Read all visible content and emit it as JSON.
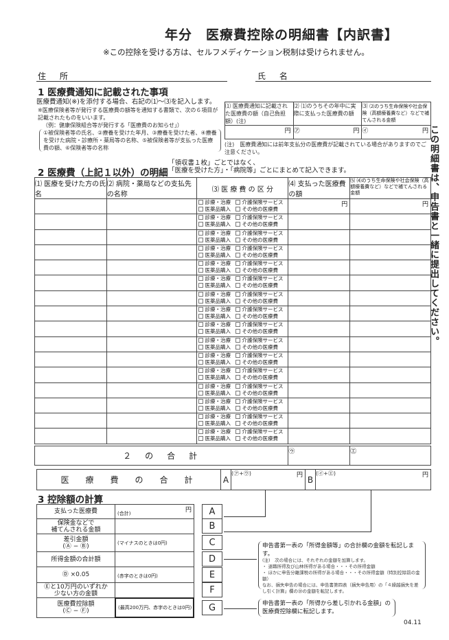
{
  "header": {
    "title": "年分　医療費控除の明細書【内訳書】",
    "notice": "※この控除を受ける方は、セルフメディケーション税制は受けられません。",
    "address_label": "住 所",
    "name_label": "氏 名"
  },
  "side_note": "この明細書は、申告書と一緒に提出してください。",
  "section1": {
    "heading": "1 医療費通知に記載された事項",
    "instruction": "医療費通知(※)を添付する場合、右記の⑴〜⑶を記入します。",
    "note1": "※医療保険者等が発行する医療費の額等を通知する書類で、次の６項目が記載されたものをいいます。",
    "note2": "（例：健康保険組合等が発行する「医療費のお知らせ」）",
    "note3": "①被保険者等の氏名、②療養を受けた年月、③療養を受けた者、④療養を受けた病院・診療所・薬局等の名称、⑤被保険者等が支払った医療費の額、⑥保険者等の名称",
    "cols": [
      {
        "num": "⑴",
        "label": "医療費通知に記載された医療費の額（自己負担額）(注)",
        "mark": "",
        "unit": "円"
      },
      {
        "num": "⑵",
        "label": "⑴のうちその年中に実際に支払った医療費の額",
        "mark": "㋐",
        "unit": "円"
      },
      {
        "num": "⑶",
        "label": "⑵のうち生命保険や社会保険（高額療養費など）などで補てんされる金額",
        "mark": "㋑",
        "unit": "円"
      }
    ],
    "footnote": "(注)　医療費通知には前年支払分の医療費が記載されている場合がありますのでご注意ください。"
  },
  "section2": {
    "heading": "2 医療費（上記１以外）の明細",
    "note": "「領収書１枚」ごとではなく、\n「医療を受けた方」・「病院等」ごとにまとめて記入できます。",
    "headers": [
      "⑴ 医療を受けた方の氏名",
      "⑵ 病院・薬局などの支払先の名称",
      "⑶ 医 療 費 の 区 分",
      "⑷ 支払った医療費の額",
      "⑸ ⑷のうち生命保険や社会保険（高額療養費など）などで補てんされる金額"
    ],
    "categories": [
      "診療・治療",
      "介護保険サービス",
      "医薬品購入",
      "その他の医療費"
    ],
    "unit": "円",
    "total_label": "２　の　合　計",
    "total_marks": [
      "㋒",
      "㋓"
    ]
  },
  "grand_total": {
    "label": "医　療　費　の　合　計",
    "a": "A",
    "a_formula": "(㋐+㋒)",
    "b": "B",
    "b_formula": "(㋑+㋓)",
    "unit": "円"
  },
  "section3": {
    "heading": "3 控除額の計算",
    "rows": [
      {
        "label": "支払った医療費",
        "hint": "(合計)",
        "unit": "円",
        "letter": "A"
      },
      {
        "label": "保険金などで\n補てんされる金額",
        "hint": "",
        "unit": "",
        "letter": "B"
      },
      {
        "label": "差引金額\n(Ⓐ − Ⓑ)",
        "hint": "(マイナスのときは0円)",
        "unit": "",
        "letter": "C"
      },
      {
        "label": "所得金額の合計額",
        "hint": "",
        "unit": "",
        "letter": "D"
      },
      {
        "label": "Ⓓ ×0.05",
        "hint": "(赤字のときは0円)",
        "unit": "",
        "letter": "E"
      },
      {
        "label": "Ⓔと10万円のいずれか\n少ない方の金額",
        "hint": "",
        "unit": "",
        "letter": "F"
      },
      {
        "label": "医療費控除額\n(Ⓒ − Ⓕ)",
        "hint": "(最高200万円、赤字のときは0円)",
        "unit": "",
        "letter": "G"
      }
    ],
    "d_note_title": "申告書第一表の「所得金額等」の合計欄の金額を転記します。",
    "d_note_body": "(注)　次の場合には、それぞれの金額を加算します。\n・ 退職所得及び山林所得がある場合・・・その所得金額\n・ ほかに申告分離課税の所得がある場合・・・その所得金額（特別控除前の金額）\nなお、損失申告の場合には、申告書第四表（損失申告用）の「４繰越損失を差し引く計算」欄の⑳の金額を転記します。",
    "g_note": "申告書第一表の「所得から差し引かれる金額」の医療費控除欄に転記します。"
  },
  "version": "04.11"
}
